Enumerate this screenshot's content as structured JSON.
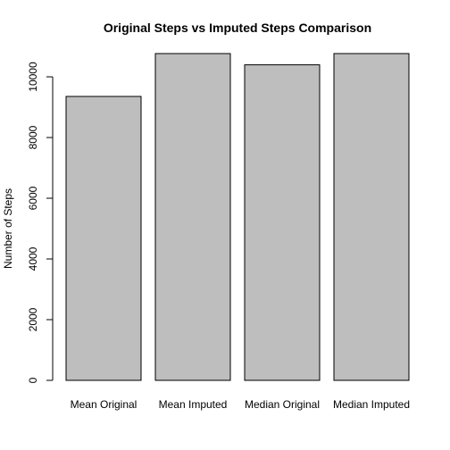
{
  "chart_data": {
    "type": "bar",
    "title": "Original Steps vs Imputed Steps Comparison",
    "xlabel": "",
    "ylabel": "Number of Steps",
    "categories": [
      "Mean Original",
      "Mean Imputed",
      "Median Original",
      "Median Imputed"
    ],
    "values": [
      9354,
      10766,
      10395,
      10766
    ],
    "ylim": [
      0,
      10766
    ],
    "yticks": [
      0,
      2000,
      4000,
      6000,
      8000,
      10000
    ],
    "ytick_labels": [
      "0",
      "2000",
      "4000",
      "6000",
      "8000",
      "10000"
    ],
    "grid": false,
    "bar_color": "#bebebe",
    "bar_border_color": "#000000"
  }
}
